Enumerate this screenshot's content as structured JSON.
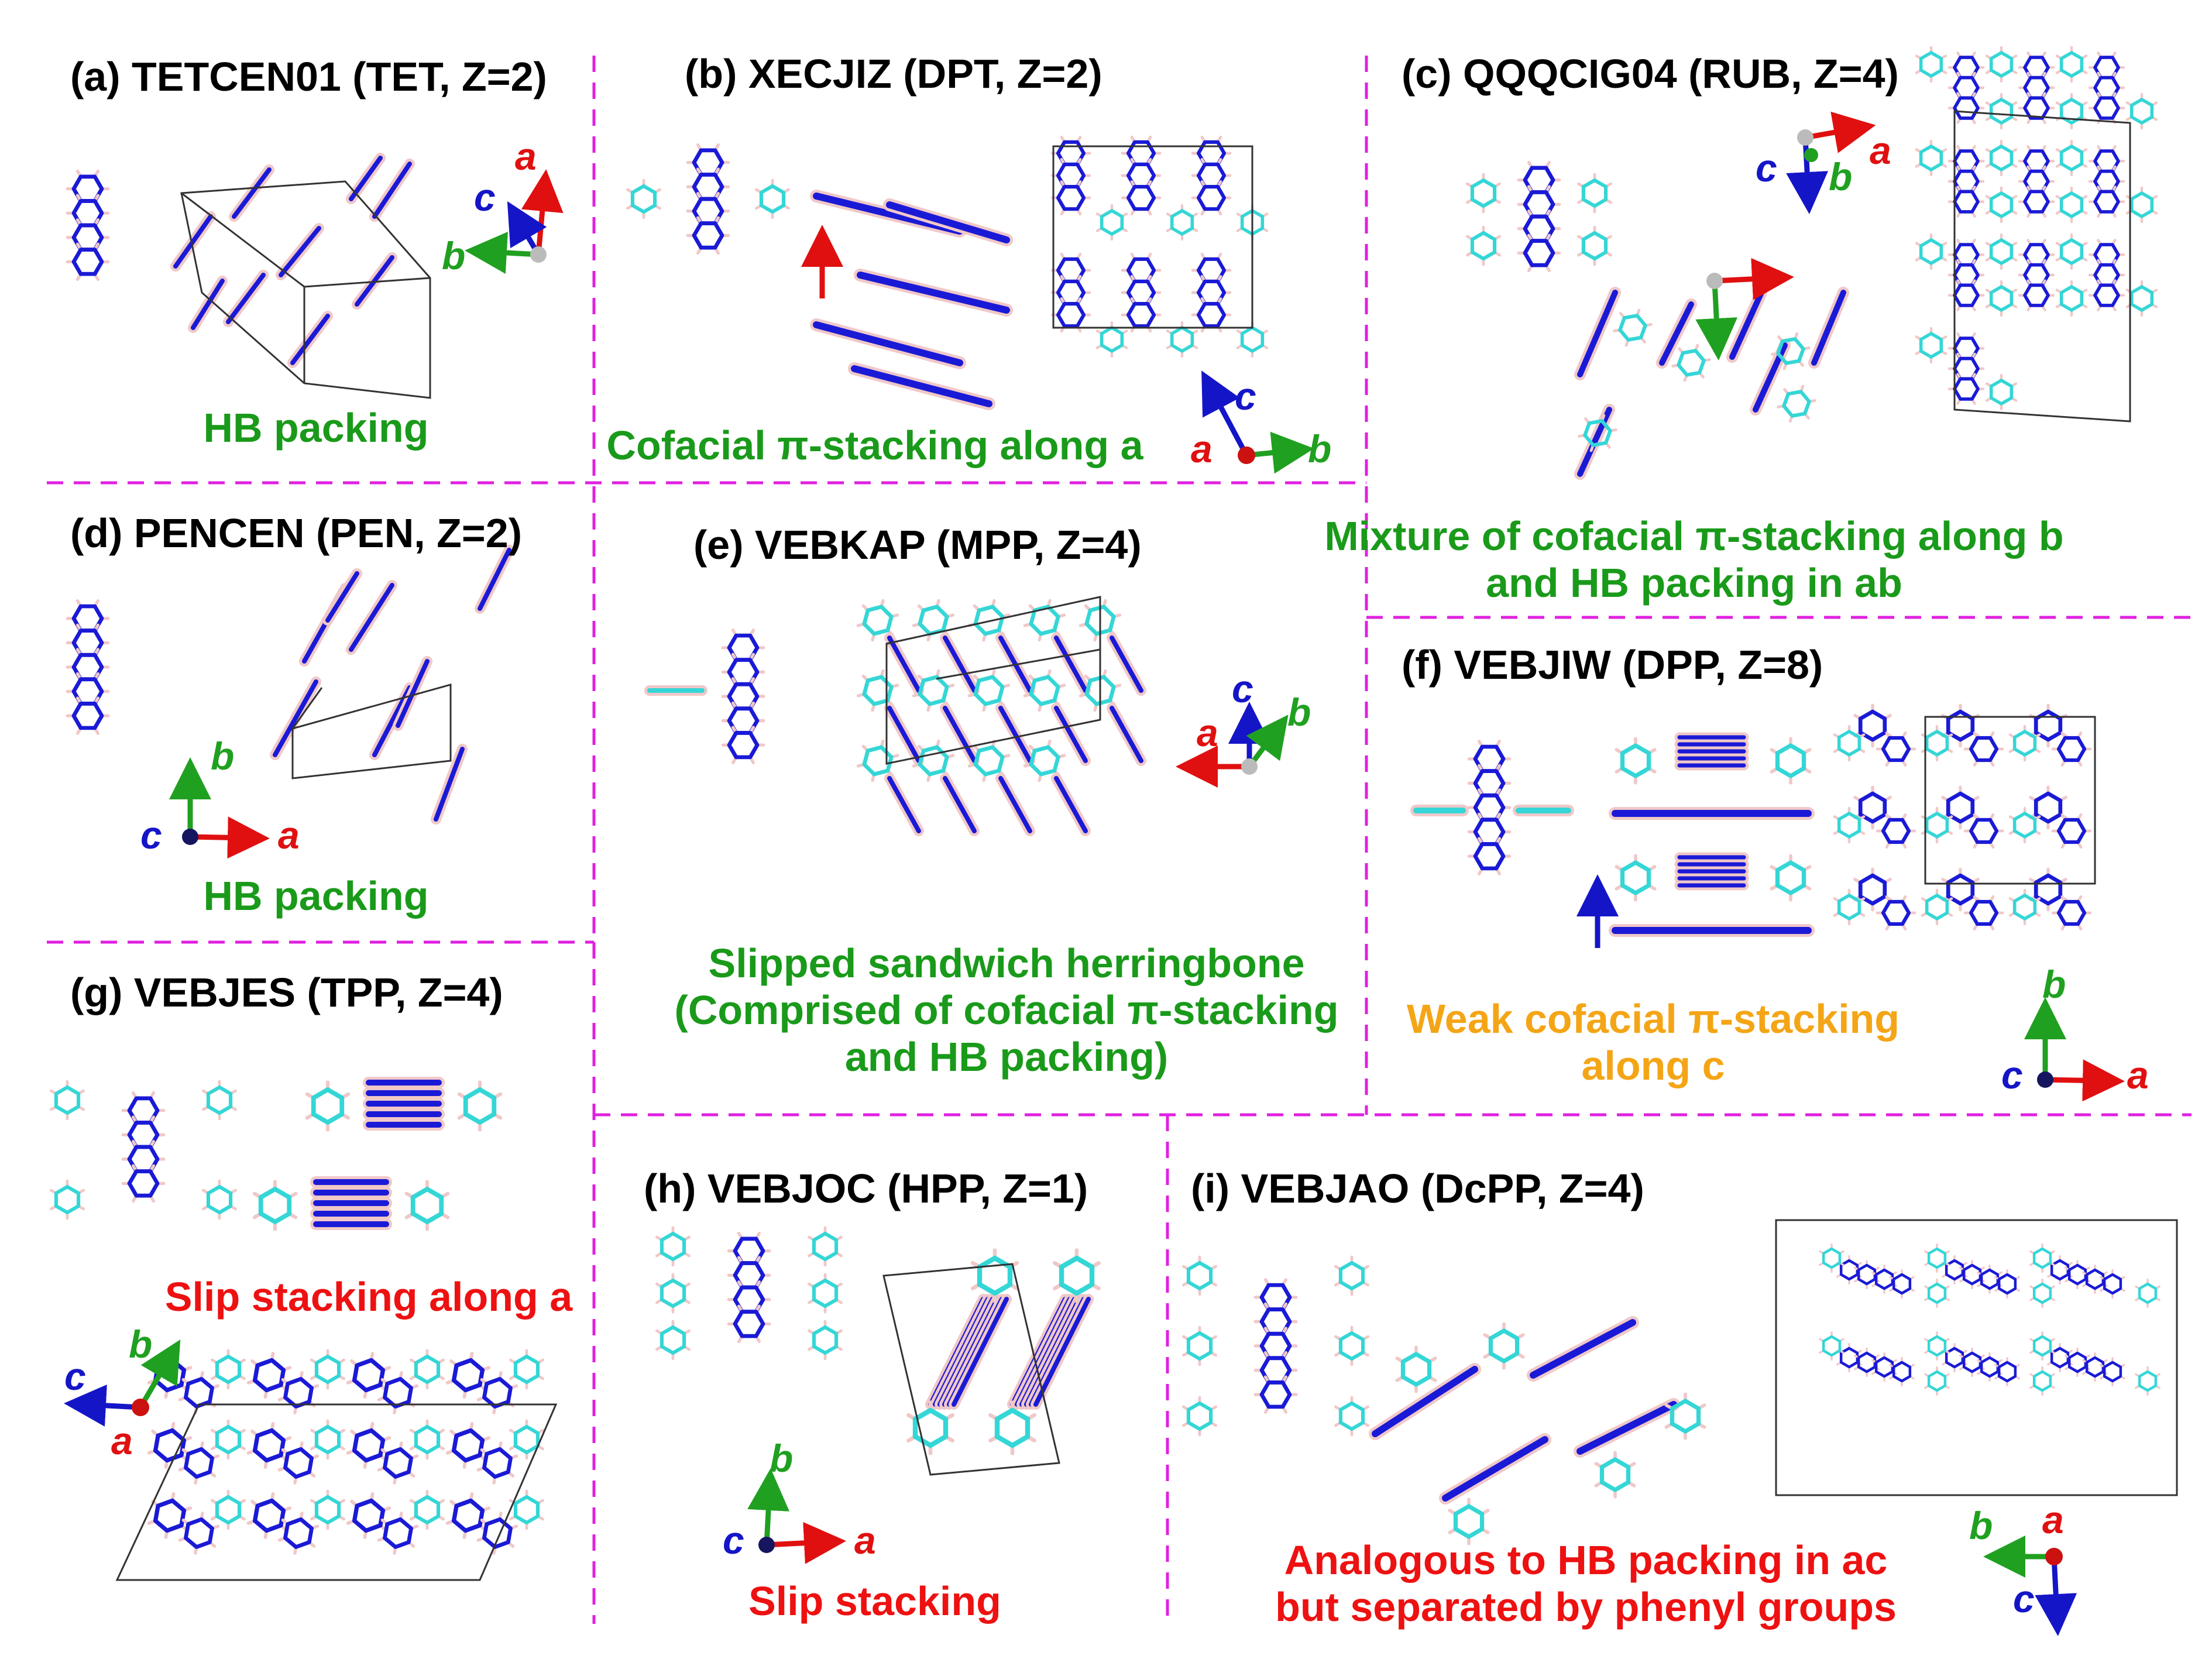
{
  "panels": [
    {
      "title": "(a) TETCEN01 (TET, Z=2)",
      "caption": [
        "HB packing"
      ],
      "caption_color": "green"
    },
    {
      "title": "(b) XECJIZ (DPT, Z=2)",
      "caption": [
        "Cofacial π-stacking along a"
      ],
      "caption_color": "green"
    },
    {
      "title": "(c) QQQCIG04 (RUB, Z=4)",
      "caption": [
        "Mixture of cofacial π-stacking along b",
        "and HB packing in ab"
      ],
      "caption_color": "green"
    },
    {
      "title": "(d) PENCEN (PEN, Z=2)",
      "caption": [
        "HB packing"
      ],
      "caption_color": "green"
    },
    {
      "title": "(e) VEBKAP (MPP, Z=4)",
      "caption": [
        "Slipped sandwich herringbone",
        "(Comprised of cofacial π-stacking",
        "and HB packing)"
      ],
      "caption_color": "green"
    },
    {
      "title": "(f) VEBJIW (DPP, Z=8)",
      "caption": [
        "Weak cofacial π-stacking",
        "along c"
      ],
      "caption_color": "orange"
    },
    {
      "title": "(g) VEBJES (TPP, Z=4)",
      "caption": [
        "Slip stacking along a"
      ],
      "caption_color": "red"
    },
    {
      "title": "(h) VEBJOC (HPP, Z=1)",
      "caption": [
        "Slip stacking"
      ],
      "caption_color": "red"
    },
    {
      "title": "(i) VEBJAO (DcPP, Z=4)",
      "caption": [
        "Analogous to HB packing in ac",
        "but separated by phenyl groups"
      ],
      "caption_color": "red"
    }
  ],
  "axis_labels": {
    "a": "a",
    "b": "b",
    "c": "c"
  },
  "colors": {
    "backbone": "#1a1ad6",
    "phenyl": "#35d6d6",
    "hydrogen": "#f0c8c8",
    "divider": "#e020e0",
    "axis_a": "#e01010",
    "axis_b": "#20a020",
    "axis_c": "#1515c8",
    "caption_green": "#1a9a1a",
    "caption_red": "#ee1111",
    "caption_orange": "#f4a516"
  }
}
